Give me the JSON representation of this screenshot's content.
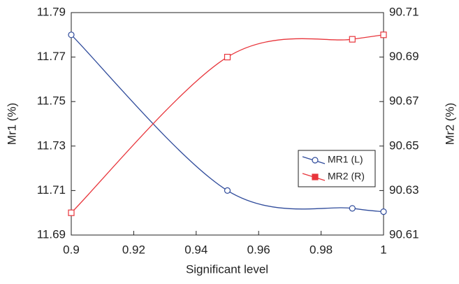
{
  "chart_data": {
    "type": "line",
    "x_label": "Significant level",
    "y_label": "Mr1 (%)",
    "y2_label": "Mr2 (%)",
    "x": [
      0.9,
      0.95,
      0.99,
      1
    ],
    "series": [
      {
        "name": "MR1 (L)",
        "color": "#2f4b9b",
        "marker": "circle",
        "values": [
          11.78,
          11.71,
          11.702,
          11.7005
        ]
      },
      {
        "name": "MR2 (R)",
        "color": "#e8353b",
        "marker": "square",
        "axis": "y2",
        "values": [
          90.62,
          90.69,
          90.698,
          90.7
        ]
      }
    ],
    "xlim": [
      0.9,
      1
    ],
    "xticks": [
      0.9,
      0.92,
      0.94,
      0.96,
      0.98,
      1
    ],
    "ylim": [
      11.69,
      11.79
    ],
    "yticks": [
      11.69,
      11.71,
      11.73,
      11.75,
      11.77,
      11.79
    ],
    "y2lim": [
      90.61,
      90.71
    ],
    "y2ticks": [
      90.61,
      90.63,
      90.65,
      90.67,
      90.69,
      90.71
    ],
    "legend": "right",
    "grid": false
  }
}
